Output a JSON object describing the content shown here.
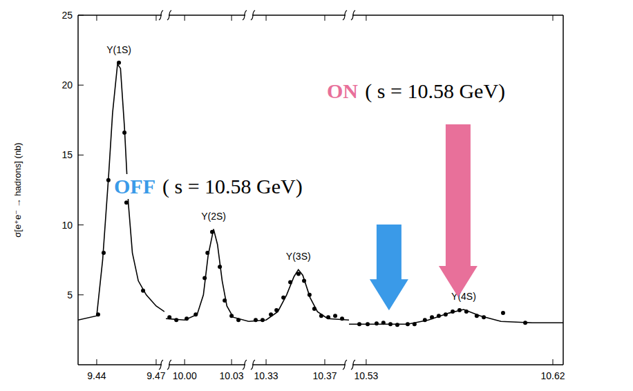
{
  "chart_data": [
    {
      "type": "scatter",
      "ylabel": "σ[e⁺e⁻ → hadrons] (nb)",
      "xlim": [
        9.4306,
        9.4742
      ],
      "xticks": [
        9.44,
        9.47
      ],
      "ylim": [
        0,
        25
      ],
      "yticks": [
        5,
        10,
        15,
        20,
        25
      ],
      "tick_labels": true,
      "peak_labels": [
        {
          "text": "Υ(1S)",
          "x": 9.4512,
          "y": 21.6
        }
      ],
      "series": [
        {
          "type": "scatter",
          "color": "#000000",
          "marker": "circle",
          "x": [
            9.4407,
            9.4435,
            9.4459,
            9.4512,
            9.454,
            9.455,
            9.4634
          ],
          "values": [
            3.6,
            8.0,
            13.2,
            21.6,
            16.6,
            11.6,
            5.3
          ]
        },
        {
          "type": "line",
          "color": "#000000",
          "line_style": "solid",
          "x": [
            9.4306,
            9.44,
            9.443,
            9.446,
            9.448,
            9.4505,
            9.452,
            9.454,
            9.456,
            9.458,
            9.461,
            9.465,
            9.47,
            9.4742
          ],
          "values": [
            3.2,
            3.5,
            7.5,
            13.5,
            18,
            21.5,
            21.2,
            17,
            11.5,
            8,
            6,
            5,
            4.2,
            3.8
          ]
        }
      ]
    },
    {
      "type": "scatter",
      "xlim": [
        9.988,
        10.041
      ],
      "xticks": [
        {
          "value": 10,
          "label": "10.00"
        },
        10.03
      ],
      "ylim": [
        0,
        25
      ],
      "tick_labels": "x",
      "peak_labels": [
        {
          "text": "Υ(2S)",
          "x": 10.0185,
          "y": 9.7
        }
      ],
      "series": [
        {
          "type": "scatter",
          "color": "#000000",
          "marker": "circle",
          "x": [
            9.9903,
            9.9947,
            10.0013,
            10.0071,
            10.0128,
            10.0146,
            10.0176,
            10.0225,
            10.0256,
            10.03,
            10.0344
          ],
          "values": [
            3.4,
            3.2,
            3.3,
            3.6,
            6.2,
            8.0,
            9.5,
            7.0,
            4.6,
            3.5,
            3.2
          ]
        },
        {
          "type": "line",
          "color": "#000000",
          "line_style": "solid",
          "x": [
            9.988,
            10.0,
            10.008,
            10.012,
            10.015,
            10.0185,
            10.021,
            10.024,
            10.027,
            10.031,
            10.041
          ],
          "values": [
            3.3,
            3.2,
            3.6,
            5.0,
            7.8,
            9.7,
            8.6,
            6.0,
            4.2,
            3.4,
            3.1
          ]
        }
      ]
    },
    {
      "type": "scatter",
      "xlim": [
        10.3182,
        10.3865
      ],
      "xticks": [
        10.33,
        10.37
      ],
      "ylim": [
        0,
        25
      ],
      "tick_labels": "x",
      "peak_labels": [
        {
          "text": "Υ(3S)",
          "x": 10.352,
          "y": 6.8
        }
      ],
      "series": [
        {
          "type": "scatter",
          "color": "#000000",
          "marker": "circle",
          "x": [
            10.3229,
            10.3276,
            10.3333,
            10.3371,
            10.3418,
            10.3465,
            10.3521,
            10.3559,
            10.3596,
            10.3629,
            10.3676,
            10.3724,
            10.3771,
            10.3818
          ],
          "values": [
            3.2,
            3.2,
            3.6,
            3.9,
            4.8,
            5.9,
            6.5,
            6.0,
            5.0,
            4.0,
            3.5,
            3.4,
            3.5,
            3.3
          ]
        },
        {
          "type": "line",
          "color": "#000000",
          "line_style": "solid",
          "x": [
            10.3182,
            10.33,
            10.338,
            10.344,
            10.349,
            10.352,
            10.355,
            10.36,
            10.365,
            10.372,
            10.3865
          ],
          "values": [
            3.1,
            3.2,
            3.8,
            5.0,
            6.3,
            6.8,
            6.4,
            4.8,
            3.8,
            3.3,
            3.2
          ]
        }
      ]
    },
    {
      "type": "scatter",
      "xlim": [
        10.5217,
        10.625
      ],
      "xticks": [
        10.53,
        10.62
      ],
      "ylim": [
        0,
        25
      ],
      "tick_labels": "x",
      "peak_labels": [
        {
          "text": "Υ(4S)",
          "x": 10.577,
          "y": 3.95
        }
      ],
      "annotations": [
        {
          "label": "OFF",
          "text": "( s = 10.58 GeV)",
          "color": "#3a9ae8",
          "x": 10.541
        },
        {
          "label": "ON",
          "text": "( s = 10.58 GeV)",
          "color": "#e8709a",
          "x": 10.5743
        }
      ],
      "series": [
        {
          "type": "scatter",
          "color": "#000000",
          "marker": "circle",
          "x": [
            10.5267,
            10.5307,
            10.535,
            10.5383,
            10.5417,
            10.545,
            10.55,
            10.5533,
            10.5583,
            10.5617,
            10.565,
            10.5683,
            10.5717,
            10.575,
            10.5783,
            10.5833,
            10.5867,
            10.596,
            10.6067
          ],
          "values": [
            2.9,
            2.9,
            2.95,
            3.0,
            2.9,
            2.85,
            2.9,
            2.9,
            3.2,
            3.4,
            3.5,
            3.6,
            3.8,
            3.9,
            3.8,
            3.5,
            3.4,
            3.7,
            3.0
          ]
        },
        {
          "type": "line",
          "color": "#000000",
          "line_style": "solid",
          "x": [
            10.5217,
            10.55,
            10.56,
            10.57,
            10.577,
            10.585,
            10.595,
            10.61,
            10.625
          ],
          "values": [
            2.9,
            2.9,
            3.2,
            3.7,
            3.95,
            3.5,
            3.1,
            3.0,
            3.0
          ]
        }
      ]
    }
  ]
}
